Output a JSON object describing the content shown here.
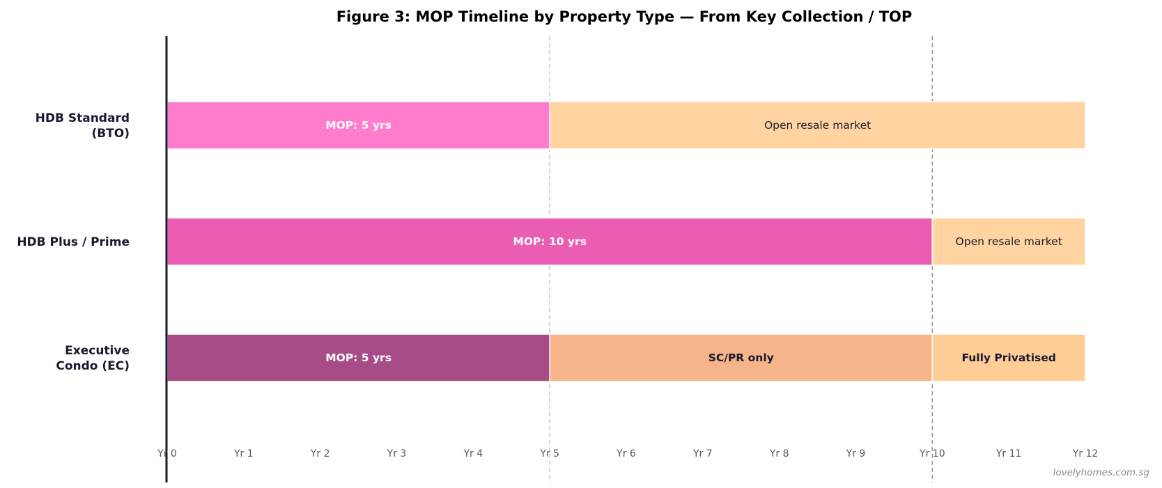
{
  "chart_data": {
    "type": "bar",
    "orientation": "horizontal-stacked-timeline",
    "title": "Figure 3: MOP Timeline by Property Type — From Key Collection / TOP",
    "xlabel": "",
    "ylabel": "",
    "xlim": [
      0,
      12
    ],
    "x_ticks": [
      {
        "value": 0,
        "label": "Yr 0"
      },
      {
        "value": 1,
        "label": "Yr 1"
      },
      {
        "value": 2,
        "label": "Yr 2"
      },
      {
        "value": 3,
        "label": "Yr 3"
      },
      {
        "value": 4,
        "label": "Yr 4"
      },
      {
        "value": 5,
        "label": "Yr 5"
      },
      {
        "value": 6,
        "label": "Yr 6"
      },
      {
        "value": 7,
        "label": "Yr 7"
      },
      {
        "value": 8,
        "label": "Yr 8"
      },
      {
        "value": 9,
        "label": "Yr 9"
      },
      {
        "value": 10,
        "label": "Yr 10"
      },
      {
        "value": 11,
        "label": "Yr 11"
      },
      {
        "value": 12,
        "label": "Yr 12"
      }
    ],
    "reference_lines": [
      {
        "x": 5,
        "color": "#c8c8c8"
      },
      {
        "x": 10,
        "color": "#999999"
      }
    ],
    "categories": [
      {
        "label_lines": [
          "HDB Standard",
          "(BTO)"
        ],
        "segments": [
          {
            "start": 0,
            "end": 5,
            "label": "MOP: 5 yrs",
            "color": "#ff7ccd",
            "text_color": "#ffffff",
            "bold": true
          },
          {
            "start": 5,
            "end": 12,
            "label": "Open resale market",
            "color": "#ffd4a0",
            "text_color": "#1a1a2e",
            "bold": false
          }
        ]
      },
      {
        "label_lines": [
          "HDB Plus / Prime"
        ],
        "segments": [
          {
            "start": 0,
            "end": 10,
            "label": "MOP: 10 yrs",
            "color": "#eb5db3",
            "text_color": "#ffffff",
            "bold": true
          },
          {
            "start": 10,
            "end": 12,
            "label": "Open resale market",
            "color": "#ffd4a0",
            "text_color": "#1a1a2e",
            "bold": false
          }
        ]
      },
      {
        "label_lines": [
          "Executive",
          "Condo (EC)"
        ],
        "segments": [
          {
            "start": 0,
            "end": 5,
            "label": "MOP: 5 yrs",
            "color": "#a84c87",
            "text_color": "#ffffff",
            "bold": true
          },
          {
            "start": 5,
            "end": 10,
            "label": "SC/PR only",
            "color": "#f6b48b",
            "text_color": "#1a1a2e",
            "bold": true
          },
          {
            "start": 10,
            "end": 12,
            "label": "Fully Privatised",
            "color": "#ffce96",
            "text_color": "#1a1a2e",
            "bold": true
          }
        ]
      }
    ],
    "legend": "none",
    "grid": false
  },
  "watermark": "lovelyhomes.com.sg"
}
